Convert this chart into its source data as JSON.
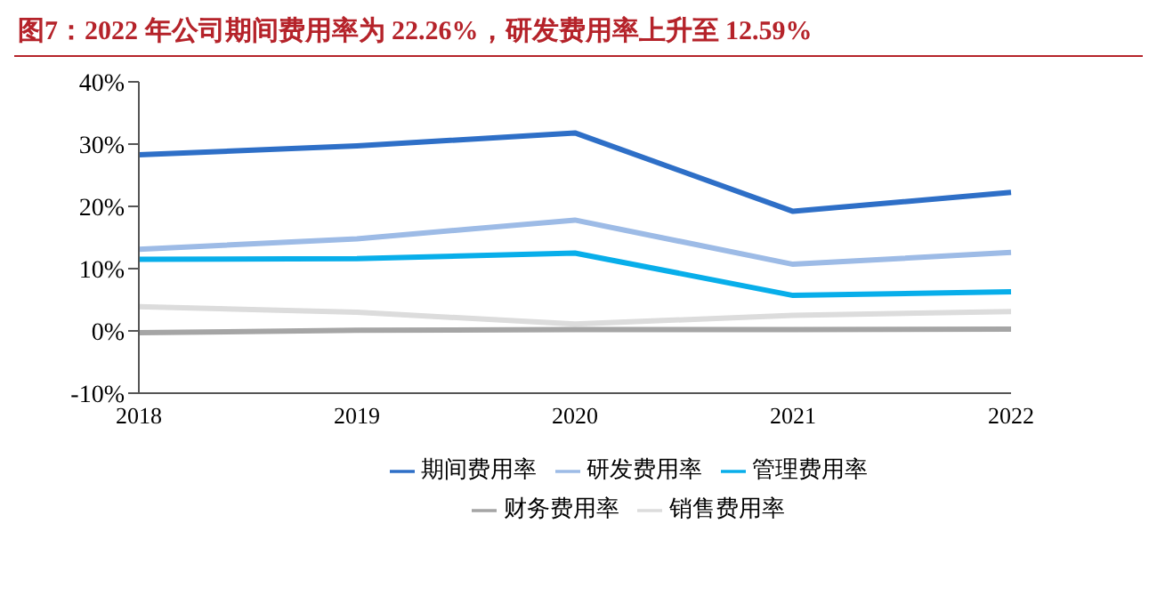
{
  "chart_data": {
    "type": "line",
    "title": "图7：2022 年公司期间费用率为 22.26%，研发费用率上升至 12.59%",
    "categories": [
      "2018",
      "2019",
      "2020",
      "2021",
      "2022"
    ],
    "series": [
      {
        "name": "期间费用率",
        "color": "#2e6fc7",
        "values": [
          28.3,
          29.7,
          31.8,
          19.2,
          22.26
        ]
      },
      {
        "name": "销售费用率",
        "color": "#dcdcdc",
        "values": [
          3.9,
          3.0,
          1.1,
          2.5,
          3.1
        ]
      },
      {
        "name": "管理费用率",
        "color": "#08aeea",
        "values": [
          11.5,
          11.6,
          12.5,
          5.7,
          6.3
        ]
      },
      {
        "name": "财务费用率",
        "color": "#a5a5a5",
        "values": [
          -0.3,
          0.1,
          0.2,
          0.2,
          0.3
        ]
      },
      {
        "name": "研发费用率",
        "color": "#9dbbe6",
        "values": [
          13.1,
          14.8,
          17.8,
          10.7,
          12.59
        ]
      }
    ],
    "ylim": [
      -10,
      40
    ],
    "yticks": [
      {
        "value": -10,
        "label": "-10%"
      },
      {
        "value": 0,
        "label": "0%"
      },
      {
        "value": 10,
        "label": "10%"
      },
      {
        "value": 20,
        "label": "20%"
      },
      {
        "value": 30,
        "label": "30%"
      },
      {
        "value": 40,
        "label": "40%"
      }
    ],
    "grid": false,
    "legend": "bottom",
    "marker": "none",
    "line_style": "solid"
  }
}
